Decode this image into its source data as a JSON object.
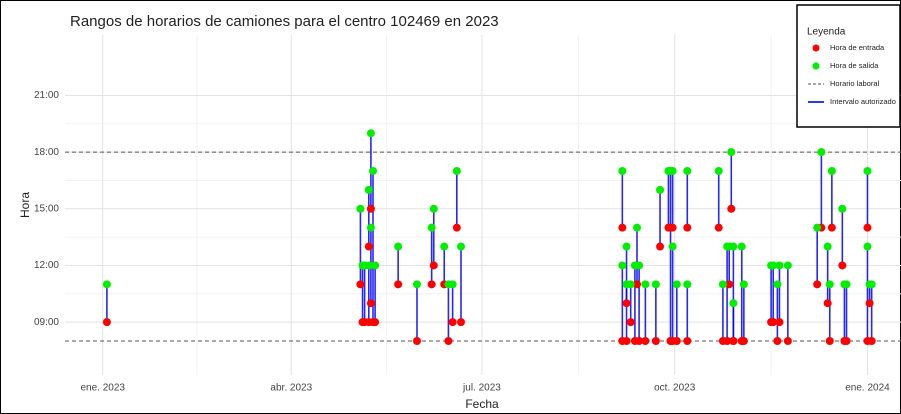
{
  "chart_data": {
    "type": "interval",
    "title": "Rangos de horarios de camiones para el centro 102469 en 2023",
    "x_label": "Fecha",
    "y_label": "Hora",
    "legend_title": "Leyenda",
    "x": [
      2,
      123,
      124,
      125,
      127,
      127,
      128,
      128,
      129,
      130,
      141,
      150,
      157,
      158,
      163,
      165,
      167,
      169,
      171,
      248,
      248,
      250,
      250,
      252,
      254,
      255,
      256,
      259,
      264,
      266,
      270,
      271,
      272,
      272,
      274,
      279,
      279,
      294,
      296,
      298,
      299,
      300,
      301,
      301,
      305,
      306,
      319,
      320,
      322,
      323,
      327,
      341,
      343,
      346,
      347,
      348,
      353,
      354,
      355,
      365,
      365,
      366,
      367
    ],
    "series": [
      {
        "name": "Hora de entrada",
        "color": "#ff0000",
        "values": [
          9,
          11,
          9,
          9,
          13,
          9,
          15,
          10,
          9,
          9,
          11,
          8,
          11,
          12,
          11,
          8,
          9,
          14,
          9,
          14,
          8,
          10,
          8,
          9,
          8,
          11,
          8,
          8,
          8,
          13,
          14,
          8,
          14,
          8,
          8,
          14,
          8,
          14,
          8,
          8,
          11,
          15,
          8,
          8,
          8,
          8,
          9,
          9,
          8,
          9,
          8,
          11,
          14,
          10,
          8,
          14,
          12,
          8,
          8,
          14,
          8,
          10,
          8
        ]
      },
      {
        "name": "Hora de salida",
        "color": "#00ee00",
        "values": [
          11,
          15,
          12,
          12,
          16,
          12,
          19,
          14,
          17,
          12,
          13,
          11,
          14,
          15,
          13,
          11,
          11,
          17,
          13,
          17,
          12,
          11,
          13,
          11,
          12,
          14,
          12,
          11,
          11,
          16,
          17,
          17,
          17,
          13,
          11,
          17,
          11,
          17,
          11,
          13,
          13,
          18,
          10,
          13,
          13,
          11,
          12,
          12,
          11,
          12,
          12,
          14,
          18,
          13,
          11,
          17,
          15,
          11,
          11,
          17,
          13,
          11,
          11
        ]
      }
    ],
    "interval": {
      "name": "Intervalo autorizado",
      "color": "#0000ff"
    },
    "reference_lines": {
      "name": "Horario laboral",
      "color": "#555555",
      "values": [
        8,
        18
      ]
    },
    "xlim": [
      -18,
      381
    ],
    "xticks": [
      {
        "value": 0,
        "label": "ene. 2023"
      },
      {
        "value": 90,
        "label": "abr. 2023"
      },
      {
        "value": 181,
        "label": "jul. 2023"
      },
      {
        "value": 273,
        "label": "oct. 2023"
      },
      {
        "value": 365,
        "label": "ene. 2024"
      }
    ],
    "ylim": [
      6.2,
      24.2
    ],
    "yticks": [
      {
        "value": 9,
        "label": "09:00"
      },
      {
        "value": 12,
        "label": "12:00"
      },
      {
        "value": 15,
        "label": "15:00"
      },
      {
        "value": 18,
        "label": "18:00"
      },
      {
        "value": 21,
        "label": "21:00"
      }
    ],
    "grid": true
  }
}
